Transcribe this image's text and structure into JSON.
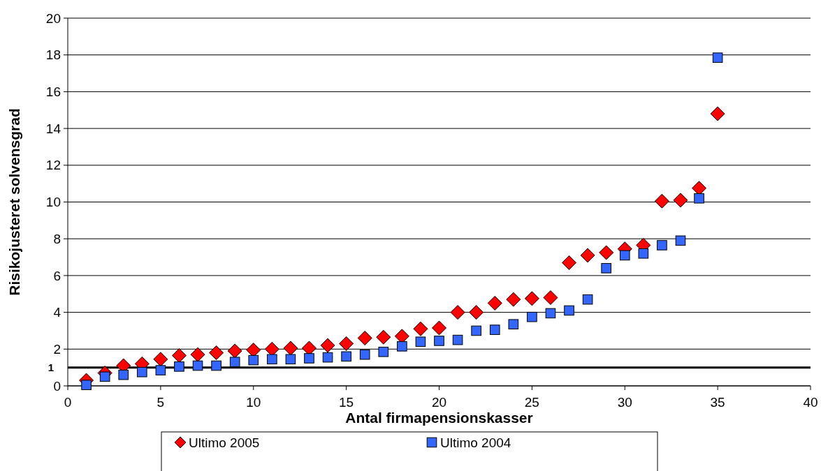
{
  "chart_data": {
    "type": "scatter",
    "xlabel": "Antal firmapensionskasser",
    "ylabel": "Risikojusteret solvensgrad",
    "x": [
      1,
      2,
      3,
      4,
      5,
      6,
      7,
      8,
      9,
      10,
      11,
      12,
      13,
      14,
      15,
      16,
      17,
      18,
      19,
      20,
      21,
      22,
      23,
      24,
      25,
      26,
      27,
      28,
      29,
      30,
      31,
      32,
      33,
      34,
      35
    ],
    "series": [
      {
        "name": "Ultimo 2005",
        "color": "#ff0000",
        "marker": "diamond",
        "values": [
          0.3,
          0.7,
          1.1,
          1.2,
          1.45,
          1.65,
          1.7,
          1.8,
          1.9,
          1.95,
          2.0,
          2.05,
          2.05,
          2.2,
          2.3,
          2.6,
          2.65,
          2.7,
          3.1,
          3.15,
          4.0,
          4.0,
          4.5,
          4.7,
          4.75,
          4.8,
          6.7,
          7.1,
          7.25,
          7.45,
          7.65,
          10.05,
          10.1,
          10.75,
          14.8
        ]
      },
      {
        "name": "Ultimo 2004",
        "color": "#3366ff",
        "marker": "square",
        "values": [
          0.05,
          0.5,
          0.6,
          0.75,
          0.85,
          1.05,
          1.1,
          1.1,
          1.3,
          1.4,
          1.45,
          1.45,
          1.5,
          1.55,
          1.6,
          1.7,
          1.85,
          2.15,
          2.4,
          2.45,
          2.5,
          3.0,
          3.05,
          3.35,
          3.75,
          3.95,
          4.1,
          4.7,
          6.4,
          7.1,
          7.2,
          7.65,
          7.9,
          10.2,
          17.85
        ]
      }
    ],
    "xlim": [
      0,
      40
    ],
    "xticks": [
      0,
      5,
      10,
      15,
      20,
      25,
      30,
      35,
      40
    ],
    "ylim": [
      0,
      20
    ],
    "yticks": [
      0,
      2,
      4,
      6,
      8,
      10,
      12,
      14,
      16,
      18,
      20
    ],
    "grid": "y",
    "legend": "bottom",
    "ref_lines": [
      {
        "axis": "y",
        "value": 1,
        "label": "1",
        "color": "#000000"
      }
    ]
  }
}
